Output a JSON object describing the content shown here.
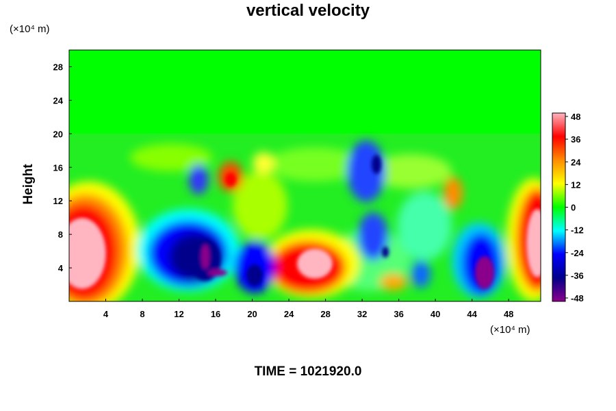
{
  "chart_data": {
    "type": "heatmap",
    "title": "vertical velocity",
    "xlabel": "",
    "ylabel": "Height",
    "x_unit": "(×10⁴ m)",
    "y_unit": "(×10⁴ m)",
    "xlim": [
      0,
      51.5
    ],
    "ylim": [
      0,
      30
    ],
    "x_ticks": [
      "4",
      "8",
      "12",
      "16",
      "20",
      "24",
      "28",
      "32",
      "36",
      "40",
      "44",
      "48"
    ],
    "y_ticks": [
      "4",
      "8",
      "12",
      "16",
      "20",
      "24",
      "28"
    ],
    "colorbar": {
      "range": [
        -48,
        48
      ],
      "ticks": [
        "48",
        "36",
        "24",
        "12",
        "0",
        "-12",
        "-24",
        "-36",
        "-48"
      ],
      "colors": [
        "#ffb6c1",
        "#ff0000",
        "#ff8c00",
        "#ffff00",
        "#00ff00",
        "#00ffff",
        "#0000ff",
        "#00008b",
        "#8b008b"
      ]
    },
    "features": [
      {
        "kind": "updraft",
        "x": 1.5,
        "y": 5.5,
        "value": 48
      },
      {
        "kind": "downdraft",
        "x": 13,
        "y": 6,
        "value": -40
      },
      {
        "kind": "downdraft",
        "x": 15,
        "y": 4,
        "value": -48
      },
      {
        "kind": "updraft",
        "x": 17.5,
        "y": 14.5,
        "value": 36
      },
      {
        "kind": "downdraft",
        "x": 20.5,
        "y": 3,
        "value": -40
      },
      {
        "kind": "updraft",
        "x": 26.5,
        "y": 4,
        "value": 48
      },
      {
        "kind": "downdraft",
        "x": 32.5,
        "y": 13.5,
        "value": -36
      },
      {
        "kind": "downdraft",
        "x": 33.5,
        "y": 7.5,
        "value": -36
      },
      {
        "kind": "updraft",
        "x": 42,
        "y": 13,
        "value": 30
      },
      {
        "kind": "downdraft",
        "x": 45,
        "y": 3.5,
        "value": -48
      },
      {
        "kind": "updraft",
        "x": 51,
        "y": 7,
        "value": 48
      }
    ]
  },
  "footer": {
    "time_label": "TIME = 1021920.0"
  }
}
